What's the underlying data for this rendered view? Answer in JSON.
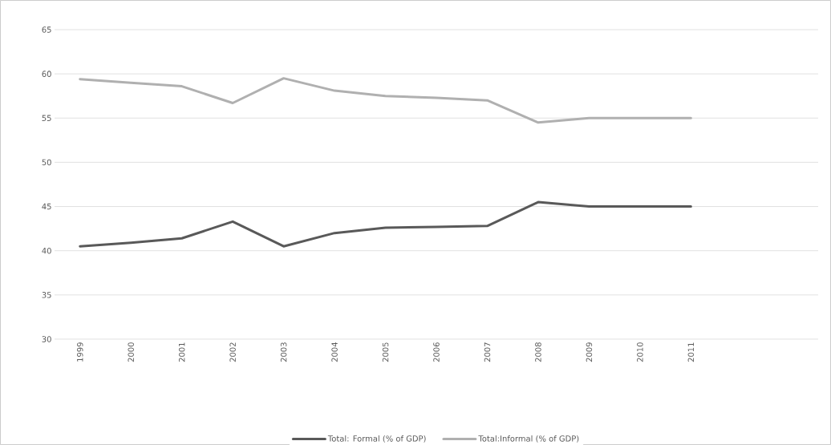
{
  "chart_data": {
    "type": "line",
    "categories": [
      "1999",
      "2000",
      "2001",
      "2002",
      "2003",
      "2004",
      "2005",
      "2006",
      "2007",
      "2008",
      "2009",
      "2010",
      "2011"
    ],
    "series": [
      {
        "name": "Total: Formal (% of GDP)",
        "color": "#595959",
        "values": [
          40.5,
          40.9,
          41.4,
          43.3,
          40.5,
          42.0,
          42.6,
          42.7,
          42.8,
          45.5,
          45.0,
          45.0,
          45.0
        ]
      },
      {
        "name": "Total:Informal (% of GDP)",
        "color": "#b0b0b0",
        "values": [
          59.4,
          59.0,
          58.6,
          56.7,
          59.5,
          58.1,
          57.5,
          57.3,
          57.0,
          54.5,
          55.0,
          55.0,
          55.0
        ]
      }
    ],
    "ylim": [
      30,
      65
    ],
    "yticks": [
      30,
      35,
      40,
      45,
      50,
      55,
      60,
      65
    ],
    "grid": "y",
    "legend": "bottom",
    "marker": "none",
    "line_style": "solid"
  }
}
